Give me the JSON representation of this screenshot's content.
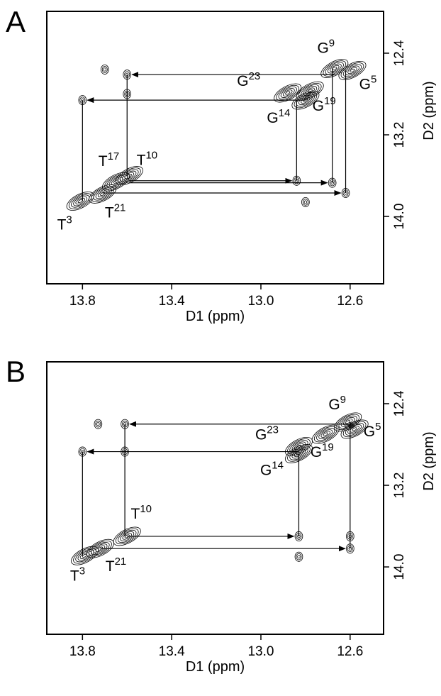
{
  "chart_data": [
    {
      "type": "contour",
      "panel": "A",
      "xlabel": "D1 (ppm)",
      "ylabel": "D2 (ppm)",
      "xlim": [
        13.96,
        12.45
      ],
      "ylim": [
        14.66,
        11.99
      ],
      "xticks": [
        13.8,
        13.4,
        {
          "value": 13,
          "label": "13.0"
        },
        12.6
      ],
      "yticks": [
        12.4,
        13.2,
        {
          "value": 14,
          "label": "14.0"
        }
      ],
      "diagonal_peaks": {
        "x": [
          13.81,
          13.71,
          13.65,
          13.59,
          12.8,
          12.88,
          12.78,
          12.67,
          12.59
        ],
        "y": [
          13.85,
          13.78,
          13.66,
          13.6,
          12.86,
          12.79,
          12.77,
          12.55,
          12.57
        ],
        "labels": [
          {
            "base": "T",
            "sup": "3"
          },
          {
            "base": "T",
            "sup": "21"
          },
          {
            "base": "T",
            "sup": "17"
          },
          {
            "base": "T",
            "sup": "10"
          },
          {
            "base": "G",
            "sup": "14"
          },
          {
            "base": "G",
            "sup": "23"
          },
          {
            "base": "G",
            "sup": "19"
          },
          {
            "base": "G",
            "sup": "9"
          },
          {
            "base": "G",
            "sup": "5"
          }
        ]
      },
      "cross_peaks": {
        "x": [
          13.8,
          13.6,
          13.6,
          13.7,
          12.84,
          12.68,
          12.62,
          12.8
        ],
        "y": [
          12.86,
          12.61,
          12.8,
          12.56,
          13.65,
          13.67,
          13.77,
          13.86
        ]
      }
    },
    {
      "type": "contour",
      "panel": "B",
      "xlabel": "D1 (ppm)",
      "ylabel": "D2 (ppm)",
      "xlim": [
        13.96,
        12.45
      ],
      "ylim": [
        14.66,
        11.99
      ],
      "xticks": [
        13.8,
        13.4,
        {
          "value": 13,
          "label": "13.0"
        },
        12.6
      ],
      "yticks": [
        12.4,
        13.2,
        {
          "value": 14,
          "label": "14.0"
        }
      ],
      "diagonal_peaks": {
        "x": [
          13.79,
          13.72,
          13.6,
          12.83,
          12.83,
          12.71,
          12.61,
          12.58
        ],
        "y": [
          13.89,
          13.82,
          13.7,
          12.82,
          12.89,
          12.7,
          12.58,
          12.65
        ],
        "labels": [
          {
            "base": "T",
            "sup": "3"
          },
          {
            "base": "T",
            "sup": "21"
          },
          {
            "base": "T",
            "sup": "10"
          },
          {
            "base": "G",
            "sup": "23"
          },
          {
            "base": "G",
            "sup": "14"
          },
          {
            "base": "G",
            "sup": "19"
          },
          {
            "base": "G",
            "sup": "9"
          },
          {
            "base": "G",
            "sup": "5"
          }
        ]
      },
      "cross_peaks": {
        "x": [
          13.8,
          13.61,
          13.61,
          13.73,
          12.83,
          12.83,
          12.6,
          12.6
        ],
        "y": [
          12.87,
          12.87,
          12.6,
          12.6,
          13.7,
          13.9,
          13.7,
          13.82
        ]
      }
    }
  ]
}
